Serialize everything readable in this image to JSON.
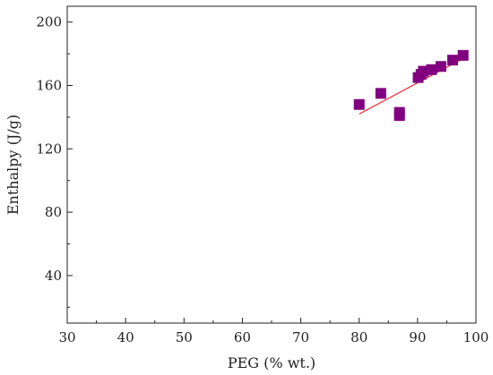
{
  "chart_data": {
    "type": "scatter",
    "title": "",
    "xlabel": "PEG (% wt.)",
    "ylabel": "Enthalpy (J/g)",
    "xlim": [
      30,
      100
    ],
    "ylim": [
      10,
      210
    ],
    "x_ticks": [
      30,
      40,
      50,
      60,
      70,
      80,
      90,
      100
    ],
    "x_tick_labels": [
      "30",
      "40",
      "50",
      "60",
      "70",
      "80",
      "90",
      "100"
    ],
    "y_ticks": [
      40,
      80,
      120,
      160,
      200
    ],
    "y_tick_labels": [
      "40",
      "80",
      "120",
      "160",
      "200"
    ],
    "grid": false,
    "legend": "none",
    "series": [
      {
        "marker": "square",
        "color": "#800080",
        "points": [
          {
            "x": 80,
            "y": 148
          },
          {
            "x": 83.7,
            "y": 155
          },
          {
            "x": 86.9,
            "y": 143
          },
          {
            "x": 86.9,
            "y": 141
          },
          {
            "x": 90.1,
            "y": 165
          },
          {
            "x": 90.6,
            "y": 167
          },
          {
            "x": 91,
            "y": 169
          },
          {
            "x": 92.4,
            "y": 170
          },
          {
            "x": 94,
            "y": 172
          },
          {
            "x": 96,
            "y": 176
          },
          {
            "x": 97.8,
            "y": 179
          }
        ]
      }
    ],
    "fit_line": {
      "color": "#e8202a",
      "from": {
        "x": 80,
        "y": 142
      },
      "to": {
        "x": 97.8,
        "y": 177
      }
    }
  }
}
